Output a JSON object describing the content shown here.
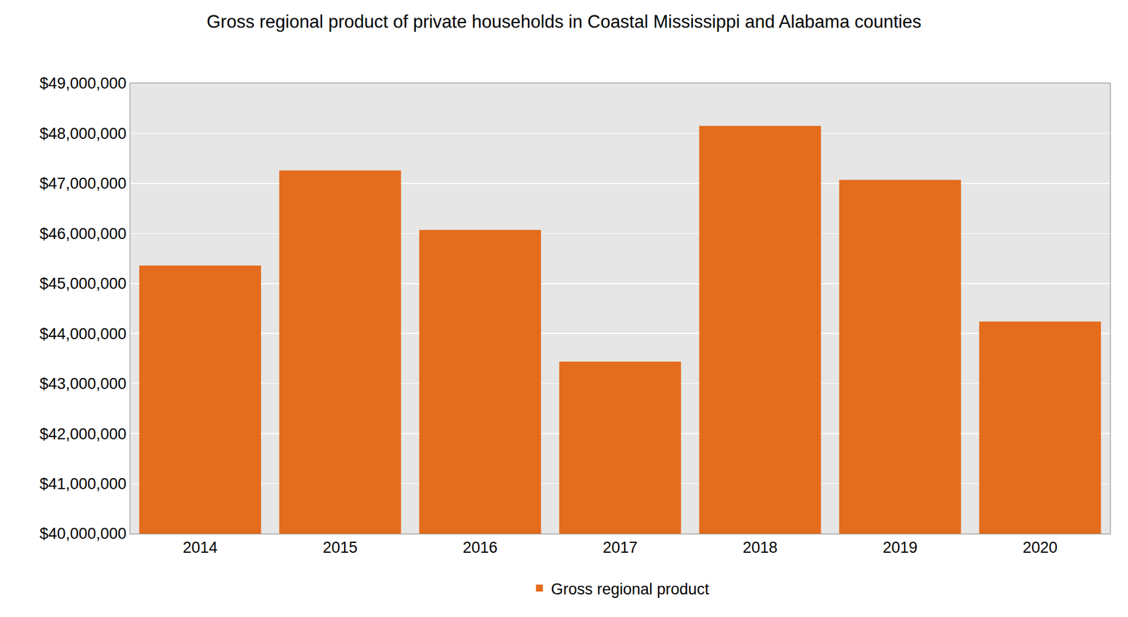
{
  "chart_data": {
    "type": "bar",
    "title": "Gross regional product of private households in Coastal Mississippi and Alabama counties",
    "categories": [
      "2014",
      "2015",
      "2016",
      "2017",
      "2018",
      "2019",
      "2020"
    ],
    "series": [
      {
        "name": "Gross regional product",
        "color": "#e36c1d",
        "values": [
          45360000,
          47260000,
          46070000,
          43440000,
          48150000,
          47070000,
          44240000
        ]
      }
    ],
    "ylim": [
      40000000,
      49000000
    ],
    "yticks": [
      {
        "value": 40000000,
        "label": "$40,000,000"
      },
      {
        "value": 41000000,
        "label": "$41,000,000"
      },
      {
        "value": 42000000,
        "label": "$42,000,000"
      },
      {
        "value": 43000000,
        "label": "$43,000,000"
      },
      {
        "value": 44000000,
        "label": "$44,000,000"
      },
      {
        "value": 45000000,
        "label": "$45,000,000"
      },
      {
        "value": 46000000,
        "label": "$46,000,000"
      },
      {
        "value": 47000000,
        "label": "$47,000,000"
      },
      {
        "value": 48000000,
        "label": "$48,000,000"
      },
      {
        "value": 49000000,
        "label": "$49,000,000"
      }
    ],
    "grid": true,
    "legend": "bottom"
  }
}
